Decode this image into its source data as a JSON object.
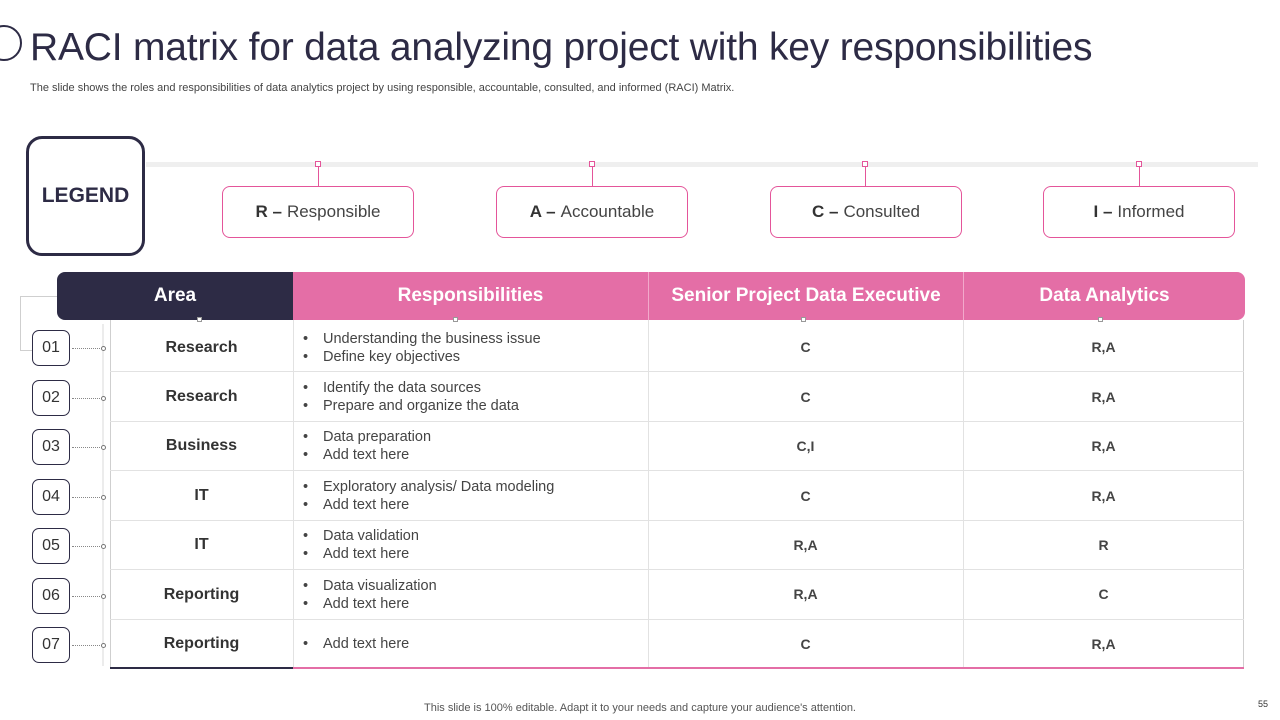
{
  "title": "RACI matrix for data analyzing project with key responsibilities",
  "subtitle": "The slide shows the roles and responsibilities of data analytics project by using responsible, accountable, consulted, and informed (RACI) Matrix.",
  "legend": {
    "label": "LEGEND",
    "items": [
      {
        "key": "R –",
        "text": "Responsible"
      },
      {
        "key": "A –",
        "text": "Accountable"
      },
      {
        "key": "C –",
        "text": "Consulted"
      },
      {
        "key": "I –",
        "text": "Informed"
      }
    ]
  },
  "table": {
    "headers": [
      "Area",
      "Responsibilities",
      "Senior Project Data Executive",
      "Data Analytics"
    ],
    "rows": [
      {
        "num": "01",
        "area": "Research",
        "resp": [
          "Understanding the business issue",
          "Define key objectives"
        ],
        "senior": "C",
        "analytics": "R,A"
      },
      {
        "num": "02",
        "area": "Research",
        "resp": [
          "Identify the data sources",
          "Prepare and organize the data"
        ],
        "senior": "C",
        "analytics": "R,A"
      },
      {
        "num": "03",
        "area": "Business",
        "resp": [
          "Data preparation",
          "Add text here"
        ],
        "senior": "C,I",
        "analytics": "R,A"
      },
      {
        "num": "04",
        "area": "IT",
        "resp": [
          "Exploratory analysis/ Data modeling",
          "Add text here"
        ],
        "senior": "C",
        "analytics": "R,A"
      },
      {
        "num": "05",
        "area": "IT",
        "resp": [
          "Data validation",
          "Add text here"
        ],
        "senior": "R,A",
        "analytics": "R"
      },
      {
        "num": "06",
        "area": "Reporting",
        "resp": [
          "Data visualization",
          "Add text here"
        ],
        "senior": "R,A",
        "analytics": "C"
      },
      {
        "num": "07",
        "area": "Reporting",
        "resp": [
          "Add text here"
        ],
        "senior": "C",
        "analytics": "R,A"
      }
    ]
  },
  "bullet_char": "•",
  "footer": "This slide is 100% editable. Adapt it to your needs and capture your audience's attention.",
  "page_number": "55",
  "colors": {
    "navy": "#2d2b45",
    "pink": "#e46ea6",
    "pink_border": "#e4559a"
  }
}
